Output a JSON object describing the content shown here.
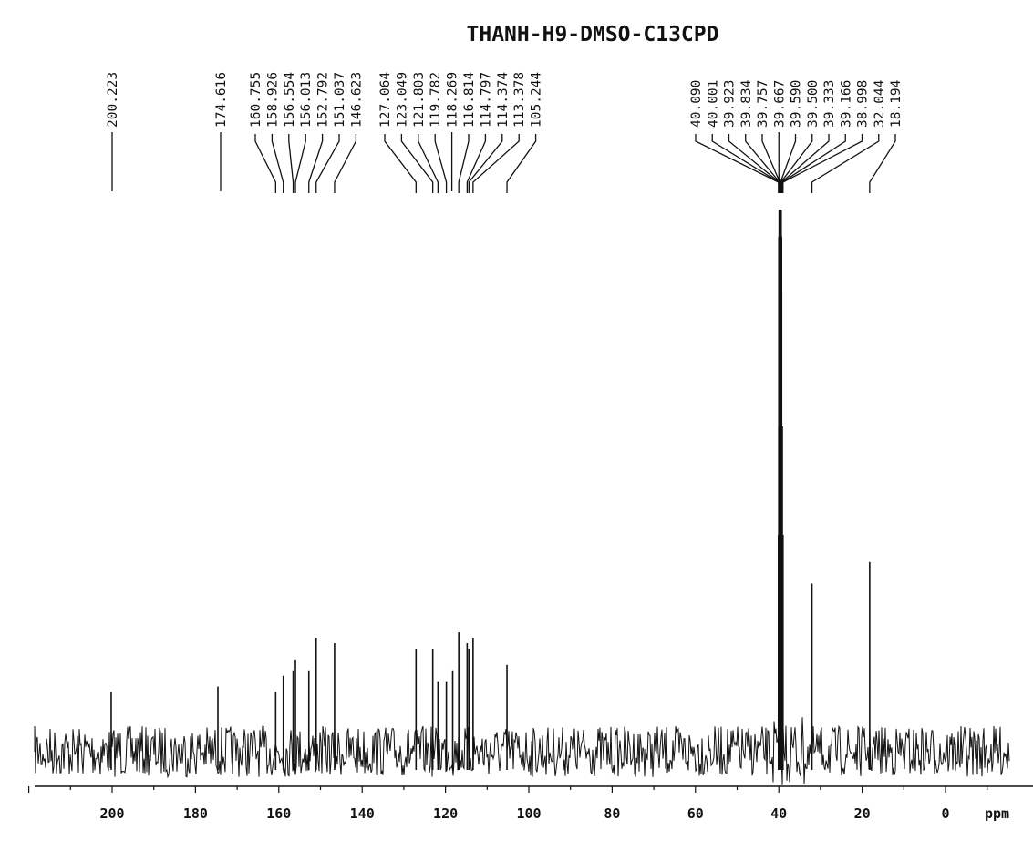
{
  "chart_data": {
    "type": "line",
    "title": "THANH-H9-DMSO-C13CPD",
    "xlabel": "ppm",
    "ylabel": "",
    "xlim": [
      220,
      -15
    ],
    "x_reversed": true,
    "xticks": [
      200,
      180,
      160,
      140,
      120,
      100,
      80,
      60,
      40,
      20,
      0
    ],
    "grid": false,
    "legend": "none",
    "peaks": [
      {
        "ppm": 200.223,
        "label": "200.223",
        "intensity": 11
      },
      {
        "ppm": 174.616,
        "label": "174.616",
        "intensity": 12
      },
      {
        "ppm": 160.755,
        "label": "160.755",
        "intensity": 11
      },
      {
        "ppm": 158.926,
        "label": "158.926",
        "intensity": 14
      },
      {
        "ppm": 156.554,
        "label": "156.554",
        "intensity": 15
      },
      {
        "ppm": 156.013,
        "label": "156.013",
        "intensity": 17
      },
      {
        "ppm": 152.792,
        "label": "152.792",
        "intensity": 15
      },
      {
        "ppm": 151.037,
        "label": "151.037",
        "intensity": 21
      },
      {
        "ppm": 146.623,
        "label": "146.623",
        "intensity": 20
      },
      {
        "ppm": 127.064,
        "label": "127.064",
        "intensity": 19
      },
      {
        "ppm": 123.049,
        "label": "123.049",
        "intensity": 19
      },
      {
        "ppm": 121.803,
        "label": "121.803",
        "intensity": 13
      },
      {
        "ppm": 119.782,
        "label": "119.782",
        "intensity": 13
      },
      {
        "ppm": 118.269,
        "label": "118.269",
        "intensity": 15
      },
      {
        "ppm": 116.814,
        "label": "116.814",
        "intensity": 22
      },
      {
        "ppm": 114.797,
        "label": "114.797",
        "intensity": 20
      },
      {
        "ppm": 114.374,
        "label": "114.374",
        "intensity": 19
      },
      {
        "ppm": 113.378,
        "label": "113.378",
        "intensity": 21
      },
      {
        "ppm": 105.244,
        "label": "105.244",
        "intensity": 16
      },
      {
        "ppm": 40.09,
        "label": "40.090",
        "intensity": 40
      },
      {
        "ppm": 40.001,
        "label": "40.001",
        "intensity": 60
      },
      {
        "ppm": 39.923,
        "label": "39.923",
        "intensity": 85
      },
      {
        "ppm": 39.834,
        "label": "39.834",
        "intensity": 95
      },
      {
        "ppm": 39.757,
        "label": "39.757",
        "intensity": 100
      },
      {
        "ppm": 39.667,
        "label": "39.667",
        "intensity": 100
      },
      {
        "ppm": 39.59,
        "label": "39.590",
        "intensity": 100
      },
      {
        "ppm": 39.5,
        "label": "39.500",
        "intensity": 95
      },
      {
        "ppm": 39.333,
        "label": "39.333",
        "intensity": 85
      },
      {
        "ppm": 39.166,
        "label": "39.166",
        "intensity": 60
      },
      {
        "ppm": 38.998,
        "label": "38.998",
        "intensity": 40
      },
      {
        "ppm": 32.044,
        "label": "32.044",
        "intensity": 31
      },
      {
        "ppm": 18.194,
        "label": "18.194",
        "intensity": 35
      }
    ]
  }
}
